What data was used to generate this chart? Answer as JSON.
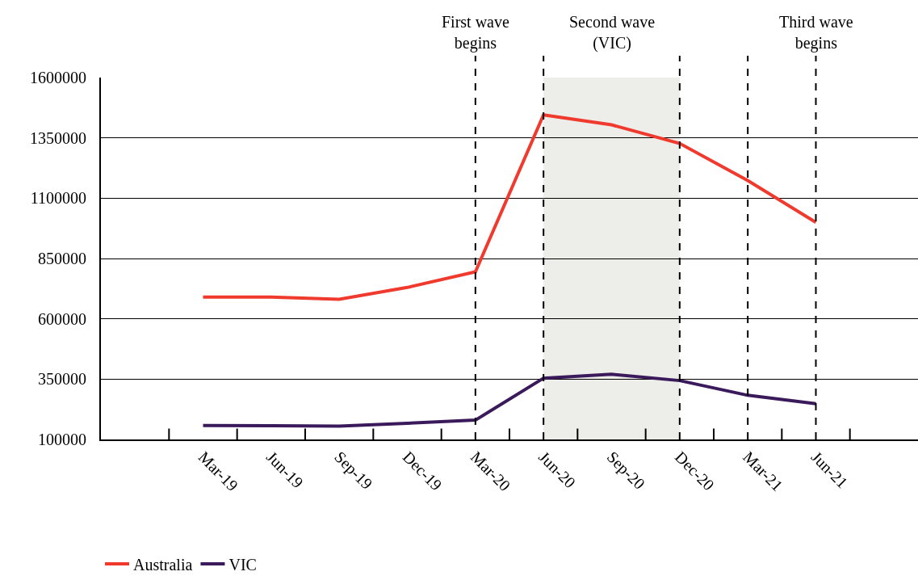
{
  "chart_data": {
    "type": "line",
    "categories": [
      null,
      "Mar-19",
      "Jun-19",
      "Sep-19",
      "Dec-19",
      "Mar-20",
      "Jun-20",
      "Sep-20",
      "Dec-20",
      "Mar-21",
      "Jun-21",
      null
    ],
    "series": [
      {
        "name": "Australia",
        "color": "#f03a2e",
        "values": [
          null,
          690000,
          690000,
          681000,
          730000,
          795000,
          1445000,
          1404000,
          1327000,
          1173000,
          1000000,
          null
        ]
      },
      {
        "name": "VIC",
        "color": "#3b1a5c",
        "values": [
          null,
          158000,
          157000,
          155000,
          167000,
          180000,
          354000,
          370000,
          344000,
          283000,
          248000,
          null
        ]
      }
    ],
    "ylim": [
      100000,
      1600000
    ],
    "yticks": [
      100000,
      350000,
      600000,
      850000,
      1100000,
      1350000,
      1600000
    ],
    "grid": "y",
    "legend": "bottom left",
    "marker": "none",
    "line_style": "solid",
    "ref_lines": [
      {
        "axis": "x",
        "value": "Mar-20",
        "label": "First wave begins",
        "color": "#000000",
        "line_style": "dashed"
      },
      {
        "axis": "x",
        "value": "Jun-20",
        "label": null,
        "color": "#000000",
        "line_style": "dashed"
      },
      {
        "axis": "x",
        "value": "Dec-20",
        "label": null,
        "color": "#000000",
        "line_style": "dashed"
      },
      {
        "axis": "x",
        "value": "Mar-21",
        "label": null,
        "color": "#000000",
        "line_style": "dashed"
      },
      {
        "axis": "x",
        "value": "Jun-21",
        "label": "Third wave begins",
        "color": "#000000",
        "line_style": "dashed"
      }
    ],
    "bands": [
      {
        "axis": "x",
        "from": "Jun-20",
        "to": "Dec-20",
        "label": "Second wave (VIC)",
        "color": "#ededea"
      }
    ]
  }
}
